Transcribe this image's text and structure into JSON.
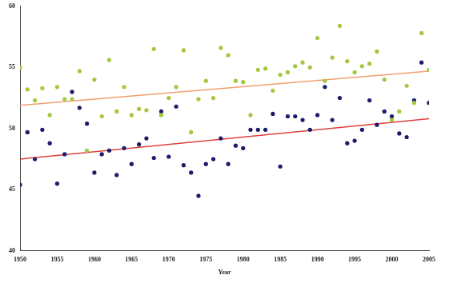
{
  "chart_data": {
    "type": "scatter",
    "xlabel": "Year",
    "xlim": [
      1950,
      2005
    ],
    "xticks": [
      1950,
      1955,
      1960,
      1965,
      1970,
      1975,
      1980,
      1985,
      1990,
      1995,
      2000,
      2005
    ],
    "ylim": [
      40,
      60
    ],
    "yticks": [
      40,
      45,
      50,
      55,
      60
    ],
    "grid": false,
    "series": [
      {
        "type": "scatter",
        "marker": "circle",
        "color": "#a3c940",
        "x": [
          1950,
          1951,
          1952,
          1953,
          1954,
          1955,
          1956,
          1957,
          1958,
          1959,
          1960,
          1961,
          1962,
          1963,
          1964,
          1965,
          1966,
          1967,
          1968,
          1969,
          1970,
          1971,
          1972,
          1973,
          1974,
          1975,
          1976,
          1977,
          1978,
          1979,
          1980,
          1981,
          1982,
          1983,
          1984,
          1985,
          1986,
          1987,
          1988,
          1989,
          1990,
          1991,
          1992,
          1993,
          1994,
          1995,
          1996,
          1997,
          1998,
          1999,
          2000,
          2001,
          2002,
          2003,
          2004,
          2005
        ],
        "values": [
          55.0,
          53.2,
          52.3,
          53.3,
          51.1,
          53.4,
          52.4,
          52.4,
          54.7,
          48.2,
          54.0,
          51.0,
          55.6,
          51.4,
          53.4,
          51.1,
          51.6,
          51.5,
          56.5,
          51.1,
          52.5,
          53.4,
          56.4,
          49.7,
          52.4,
          53.9,
          52.5,
          56.6,
          56.0,
          53.9,
          53.8,
          51.1,
          54.8,
          54.9,
          53.1,
          54.4,
          54.6,
          55.1,
          55.4,
          55.0,
          57.4,
          53.9,
          55.8,
          58.4,
          55.5,
          54.6,
          55.1,
          55.3,
          56.3,
          54.0,
          50.7,
          51.4,
          53.5,
          52.1,
          57.8,
          54.8
        ]
      },
      {
        "type": "scatter",
        "marker": "circle",
        "color": "#1c1c6b",
        "x": [
          1950,
          1951,
          1952,
          1953,
          1954,
          1955,
          1956,
          1957,
          1958,
          1959,
          1960,
          1961,
          1962,
          1963,
          1964,
          1965,
          1966,
          1967,
          1968,
          1969,
          1970,
          1971,
          1972,
          1973,
          1974,
          1975,
          1976,
          1977,
          1978,
          1979,
          1980,
          1981,
          1982,
          1983,
          1984,
          1985,
          1986,
          1987,
          1988,
          1989,
          1990,
          1991,
          1992,
          1993,
          1994,
          1995,
          1996,
          1997,
          1998,
          1999,
          2000,
          2001,
          2002,
          2003,
          2004,
          2005
        ],
        "values": [
          45.4,
          49.7,
          47.5,
          49.9,
          48.8,
          45.5,
          47.9,
          53.0,
          51.7,
          50.4,
          46.4,
          47.9,
          48.2,
          46.2,
          48.4,
          47.1,
          48.7,
          49.2,
          47.6,
          51.4,
          47.7,
          51.8,
          47.0,
          46.4,
          44.5,
          47.1,
          47.5,
          49.2,
          47.1,
          48.6,
          48.4,
          49.9,
          49.9,
          49.9,
          51.2,
          46.9,
          51.0,
          51.0,
          50.7,
          49.9,
          51.1,
          53.4,
          50.7,
          52.5,
          48.8,
          49.0,
          49.9,
          52.3,
          50.3,
          51.4,
          51.0,
          49.6,
          49.3,
          52.3,
          55.4,
          52.1
        ]
      },
      {
        "type": "line",
        "line_style": "solid",
        "color": "#f0a070",
        "x": [
          1950,
          2005
        ],
        "values": [
          51.9,
          54.7
        ]
      },
      {
        "type": "line",
        "line_style": "solid",
        "color": "#e0403a",
        "x": [
          1950,
          2005
        ],
        "values": [
          47.5,
          50.8
        ]
      }
    ]
  }
}
